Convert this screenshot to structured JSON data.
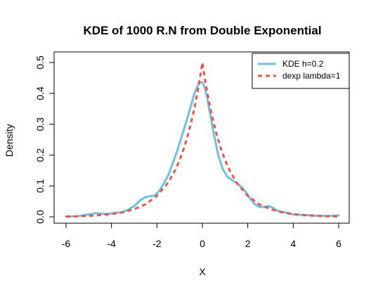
{
  "chart_data": {
    "type": "line",
    "title": "KDE of 1000 R.N from Double Exponential",
    "xlabel": "X",
    "ylabel": "Density",
    "xlim": [
      -6,
      6
    ],
    "ylim": [
      0,
      0.5
    ],
    "xticks": [
      -6,
      -4,
      -2,
      0,
      2,
      4,
      6
    ],
    "yticks": [
      0.0,
      0.1,
      0.2,
      0.3,
      0.4,
      0.5
    ],
    "ytick_labels": [
      "0.0",
      "0.1",
      "0.2",
      "0.3",
      "0.4",
      "0.5"
    ],
    "grid": false,
    "legend_position": "top-right",
    "series": [
      {
        "name": "KDE h=0.2",
        "color": "#6fbfe3",
        "style": "solid",
        "x": [
          -6,
          -5.5,
          -5,
          -4.7,
          -4.5,
          -4.2,
          -3.9,
          -3.6,
          -3.3,
          -3,
          -2.7,
          -2.5,
          -2.3,
          -2.1,
          -1.9,
          -1.7,
          -1.5,
          -1.3,
          -1.1,
          -0.9,
          -0.7,
          -0.5,
          -0.35,
          -0.2,
          -0.1,
          0,
          0.1,
          0.2,
          0.35,
          0.5,
          0.7,
          0.9,
          1.1,
          1.3,
          1.5,
          1.7,
          1.9,
          2.1,
          2.3,
          2.5,
          2.7,
          2.9,
          3.1,
          3.3,
          3.6,
          4,
          4.5,
          5,
          5.5,
          6
        ],
        "y": [
          0.001,
          0.002,
          0.008,
          0.012,
          0.011,
          0.009,
          0.013,
          0.014,
          0.022,
          0.035,
          0.056,
          0.064,
          0.067,
          0.069,
          0.084,
          0.108,
          0.135,
          0.175,
          0.215,
          0.262,
          0.31,
          0.36,
          0.4,
          0.425,
          0.435,
          0.436,
          0.42,
          0.39,
          0.33,
          0.27,
          0.2,
          0.155,
          0.13,
          0.12,
          0.11,
          0.098,
          0.082,
          0.06,
          0.042,
          0.032,
          0.032,
          0.035,
          0.03,
          0.02,
          0.015,
          0.008,
          0.006,
          0.004,
          0.003,
          0.005
        ]
      },
      {
        "name": "dexp lambda=1",
        "color": "#f0534a",
        "style": "dashed",
        "x": [
          -6,
          -5.5,
          -5,
          -4.5,
          -4,
          -3.5,
          -3,
          -2.5,
          -2,
          -1.5,
          -1.2,
          -1,
          -0.8,
          -0.6,
          -0.4,
          -0.3,
          -0.2,
          -0.1,
          -0.05,
          0,
          0.05,
          0.1,
          0.2,
          0.3,
          0.4,
          0.6,
          0.8,
          1,
          1.2,
          1.5,
          2,
          2.5,
          3,
          3.5,
          4,
          4.5,
          5,
          5.5,
          6
        ],
        "y": [
          0.0012,
          0.002,
          0.0034,
          0.0056,
          0.0092,
          0.0151,
          0.0249,
          0.041,
          0.0677,
          0.1116,
          0.1506,
          0.1839,
          0.2247,
          0.2744,
          0.3352,
          0.3704,
          0.4094,
          0.4524,
          0.4756,
          0.5,
          0.4756,
          0.4524,
          0.4094,
          0.3704,
          0.3352,
          0.2744,
          0.2247,
          0.1839,
          0.1506,
          0.1116,
          0.0677,
          0.041,
          0.0249,
          0.0151,
          0.0092,
          0.0056,
          0.0034,
          0.002,
          0.0012
        ]
      }
    ]
  }
}
